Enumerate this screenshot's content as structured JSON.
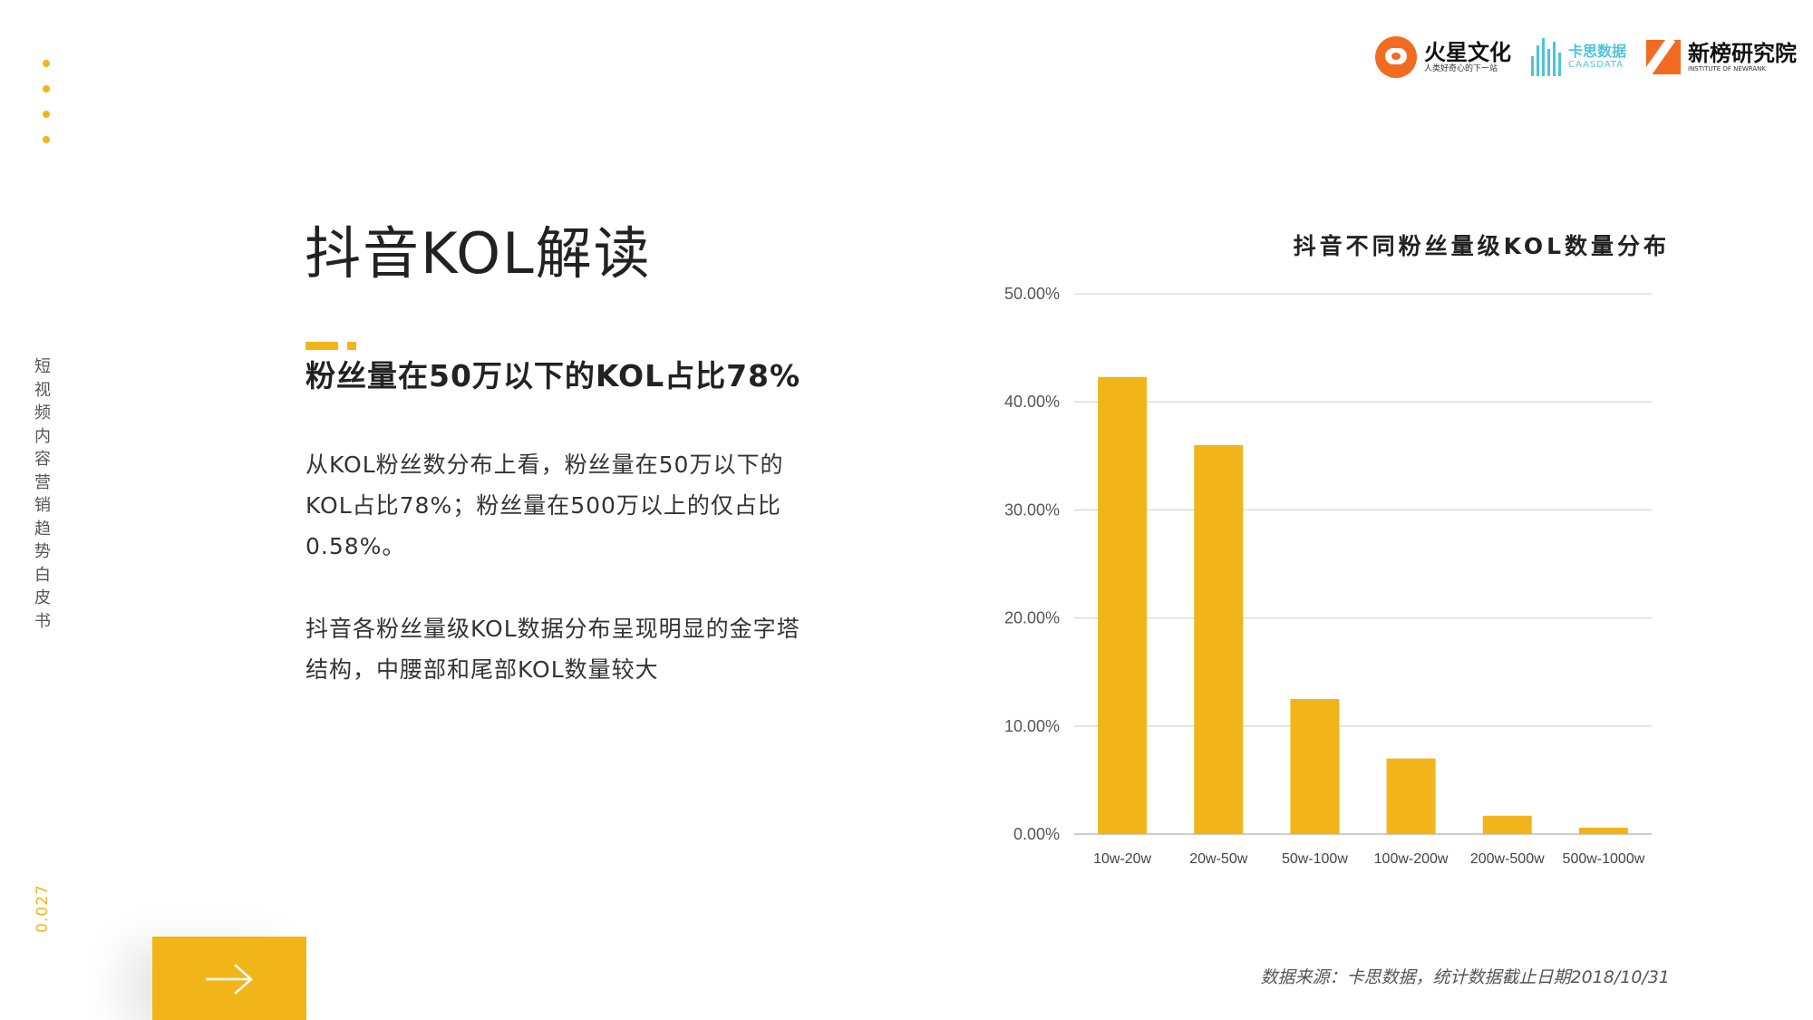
{
  "side": {
    "title_chars": [
      "短",
      "视",
      "频",
      "内",
      "容",
      "营",
      "销",
      "趋",
      "势",
      "白",
      "皮",
      "书"
    ],
    "page_number": "0.027"
  },
  "logos": {
    "huoxing": {
      "name": "火星文化",
      "tagline": "人类好奇心的下一站"
    },
    "caasdata": {
      "name": "卡思数据",
      "tagline": "CAASDATA"
    },
    "newrank": {
      "name": "新榜研究院",
      "tagline": "INSTITUTE OF NEWRANK"
    }
  },
  "content": {
    "title": "抖音KOL解读",
    "subtitle": "粉丝量在50万以下的KOL占比78%",
    "paragraph1": "从KOL粉丝数分布上看，粉丝量在50万以下的KOL占比78%；粉丝量在500万以上的仅占比0.58%。",
    "paragraph2": "抖音各粉丝量级KOL数据分布呈现明显的金字塔结构，中腰部和尾部KOL数量较大"
  },
  "nav": {
    "next_icon": "arrow-right-icon"
  },
  "colors": {
    "accent": "#f2b519",
    "text": "#222222",
    "grid": "#dddddd"
  },
  "chart_data": {
    "type": "bar",
    "title": "抖音不同粉丝量级KOL数量分布",
    "categories": [
      "10w-20w",
      "20w-50w",
      "50w-100w",
      "100w-200w",
      "200w-500w",
      "500w-1000w"
    ],
    "values": [
      42.3,
      36.0,
      12.5,
      7.0,
      1.7,
      0.6
    ],
    "ylim": [
      0,
      50
    ],
    "yticks": [
      "0.00%",
      "10.00%",
      "20.00%",
      "30.00%",
      "40.00%",
      "50.00%"
    ],
    "grid": true,
    "legend": "none",
    "color": "#f2b519"
  },
  "source": "数据来源：卡思数据，统计数据截止日期2018/10/31"
}
